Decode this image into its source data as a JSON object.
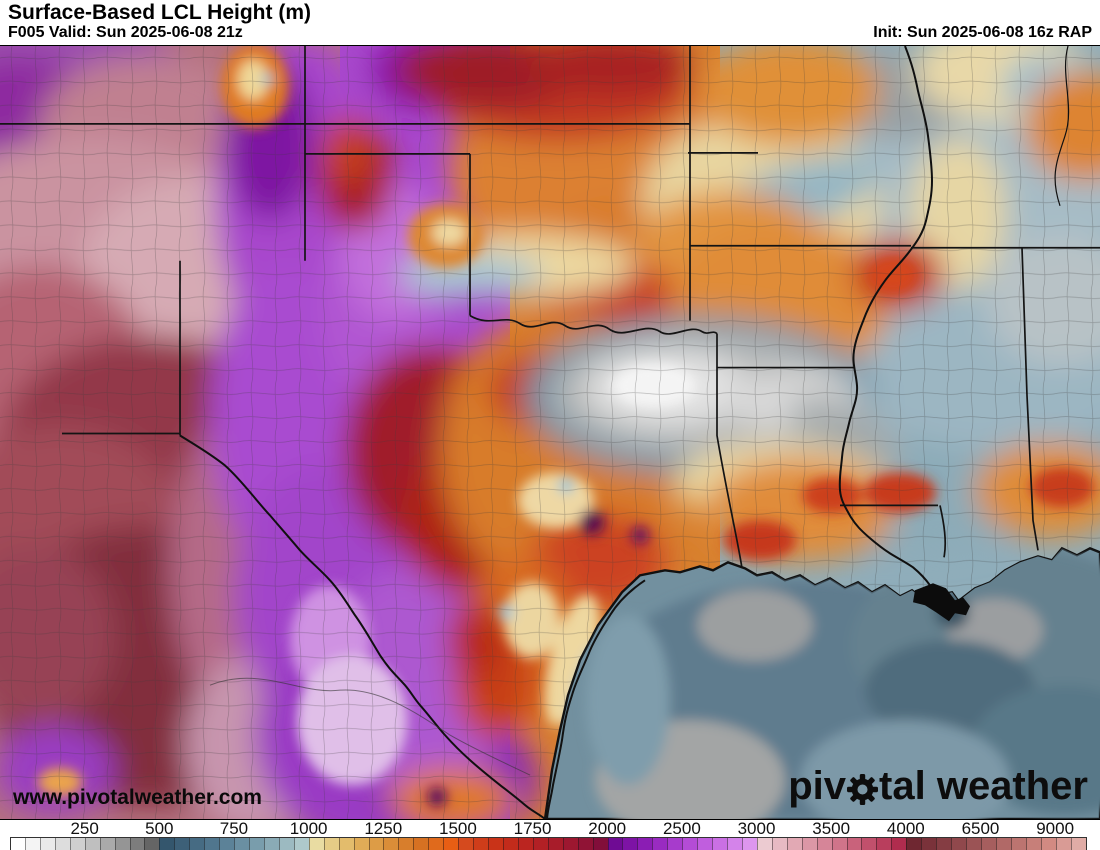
{
  "header": {
    "title": "Surface-Based LCL Height (m)",
    "valid": "F005 Valid: Sun 2025-06-08 21z",
    "init": "Init: Sun 2025-06-08 16z RAP"
  },
  "watermark": "www.pivotalweather.com",
  "logo": {
    "text_before": "piv",
    "text_after": "tal weather",
    "gear_icon": "gear-icon"
  },
  "colorbar": {
    "ticks": [
      {
        "label": "250",
        "seg": 5
      },
      {
        "label": "500",
        "seg": 10
      },
      {
        "label": "750",
        "seg": 15
      },
      {
        "label": "1000",
        "seg": 20
      },
      {
        "label": "1250",
        "seg": 25
      },
      {
        "label": "1500",
        "seg": 30
      },
      {
        "label": "1750",
        "seg": 35
      },
      {
        "label": "2000",
        "seg": 40
      },
      {
        "label": "2500",
        "seg": 45
      },
      {
        "label": "3000",
        "seg": 50
      },
      {
        "label": "3500",
        "seg": 55
      },
      {
        "label": "4000",
        "seg": 60
      },
      {
        "label": "6500",
        "seg": 65
      },
      {
        "label": "9000",
        "seg": 70
      }
    ],
    "segments": 72,
    "colors": [
      "#ffffff",
      "#f4f4f4",
      "#eaeaea",
      "#dddddd",
      "#cfcfcf",
      "#bfbfbf",
      "#aaaaaa",
      "#959595",
      "#7d7d7d",
      "#656565",
      "#34566d",
      "#3d6078",
      "#466b83",
      "#50768e",
      "#5c8298",
      "#6a8fa2",
      "#799dac",
      "#8aabb6",
      "#9cbac1",
      "#aec9cb",
      "#e9dca2",
      "#e6cc86",
      "#e3bc6c",
      "#e0ac57",
      "#dd9c46",
      "#da8d38",
      "#d87e2c",
      "#d67122",
      "#e06a1c",
      "#e85e14",
      "#d54a1e",
      "#cf3d1a",
      "#c93318",
      "#c22b1b",
      "#bb2520",
      "#b22025",
      "#a81c2a",
      "#9d1730",
      "#901335",
      "#820e3a",
      "#6f0b94",
      "#7d13a5",
      "#8b1db4",
      "#992bc1",
      "#a73bcc",
      "#b44cd6",
      "#c05ede",
      "#ca70e4",
      "#d483ea",
      "#dd96ee",
      "#eccbd1",
      "#e7bac3",
      "#e2a9b4",
      "#dc97a6",
      "#d68598",
      "#d0748a",
      "#c9627b",
      "#c1506c",
      "#b93e5d",
      "#b02c4e",
      "#6f2731",
      "#7a323a",
      "#853d43",
      "#90484c",
      "#9b5355",
      "#a65e5e",
      "#b16967",
      "#bc7470",
      "#c77f79",
      "#d28a82",
      "#d99b95",
      "#e0aca6"
    ]
  },
  "map_palette": {
    "low_lcl_gray": "#e8e8e8",
    "marine_blue": "#8fadba",
    "gulf_slate": "#72909f",
    "moderate_orange": "#d87e2c",
    "high_red": "#c93318",
    "very_high_purple": "#a73bcc",
    "extreme_rose": "#c1506c",
    "dry_maroon": "#853d43",
    "border_black": "#111111"
  }
}
